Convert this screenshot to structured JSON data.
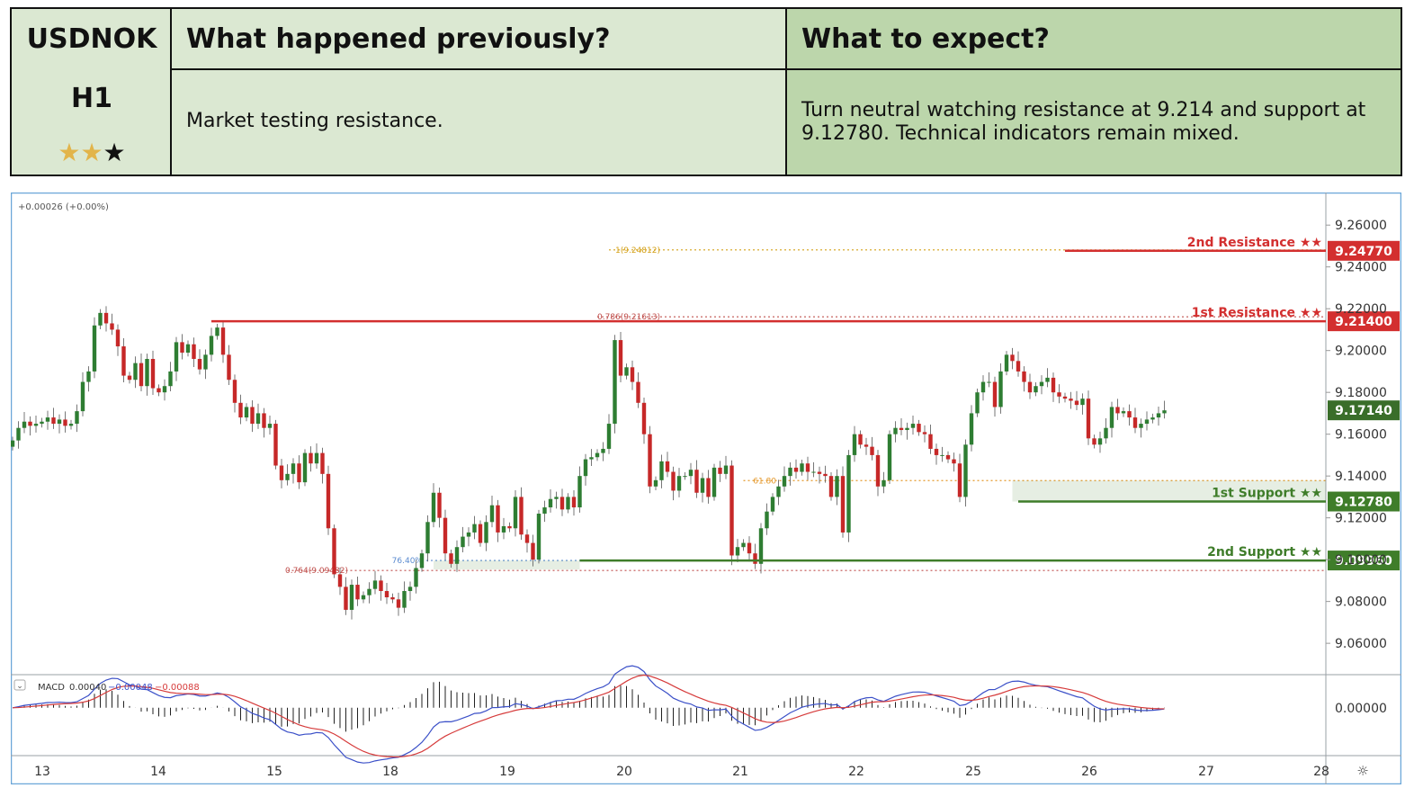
{
  "header": {
    "symbol": "USDNOK",
    "timeframe": "H1",
    "rating": {
      "filled": 2,
      "total": 3
    },
    "prev_title": "What happened previously?",
    "prev_text": "Market testing resistance.",
    "exp_title": "What to expect?",
    "exp_text": "Turn neutral watching resistance at 9.214 and support at 9.12780. Technical indicators remain mixed.",
    "colors": {
      "light_green": "#dbe8d2",
      "mid_green": "#bcd6ab"
    }
  },
  "chart_data": {
    "type": "candlestick",
    "change_label": "+0.00026 (+0.00%)",
    "y_ticks": [
      "9.26000",
      "9.24000",
      "9.22000",
      "9.20000",
      "9.18000",
      "9.16000",
      "9.14000",
      "9.12000",
      "9.10000",
      "9.08000",
      "9.06000"
    ],
    "ylim": [
      9.045,
      9.273
    ],
    "x_ticks": [
      "13",
      "14",
      "15",
      "18",
      "19",
      "20",
      "21",
      "22",
      "25",
      "26",
      "27",
      "28"
    ],
    "last_price": "9.17140",
    "levels": [
      {
        "name": "2nd Resistance ★★",
        "value": 9.2477,
        "label": "9.24770",
        "color": "#d32f2f",
        "start_bar": 180
      },
      {
        "name": "1st Resistance ★★",
        "value": 9.214,
        "label": "9.21400",
        "color": "#d32f2f",
        "start_bar": 34
      },
      {
        "name": "1st Support ★★",
        "value": 9.1278,
        "label": "9.12780",
        "color": "#3f7d2a",
        "start_bar": 172
      },
      {
        "name": "2nd Support ★★",
        "value": 9.0996,
        "label": "9.09960",
        "color": "#3f7d2a",
        "start_bar": 97
      }
    ],
    "fibs": [
      {
        "label": "1(9.24812)",
        "value": 9.24812,
        "color": "#d4a017"
      },
      {
        "label": "0.786(9.21613)",
        "value": 9.21613,
        "color": "#c0504d"
      },
      {
        "label": "61.80",
        "value": 9.1378,
        "color": "#e59a2e"
      },
      {
        "label": "76.40%",
        "value": 9.0996,
        "color": "#5b8bd0"
      },
      {
        "label": "0.764(9.09482)",
        "value": 9.09482,
        "color": "#c0504d"
      }
    ],
    "closes": [
      9.157,
      9.163,
      9.166,
      9.164,
      9.165,
      9.166,
      9.168,
      9.165,
      9.167,
      9.164,
      9.165,
      9.171,
      9.185,
      9.19,
      9.212,
      9.218,
      9.213,
      9.21,
      9.202,
      9.188,
      9.186,
      9.194,
      9.183,
      9.196,
      9.182,
      9.18,
      9.183,
      9.19,
      9.204,
      9.199,
      9.203,
      9.196,
      9.191,
      9.198,
      9.207,
      9.211,
      9.198,
      9.186,
      9.175,
      9.168,
      9.173,
      9.165,
      9.17,
      9.163,
      9.165,
      9.145,
      9.138,
      9.141,
      9.146,
      9.137,
      9.151,
      9.146,
      9.151,
      9.141,
      9.115,
      9.093,
      9.087,
      9.076,
      9.088,
      9.081,
      9.083,
      9.086,
      9.09,
      9.085,
      9.082,
      9.081,
      9.077,
      9.085,
      9.087,
      9.096,
      9.103,
      9.118,
      9.132,
      9.12,
      9.103,
      9.098,
      9.106,
      9.111,
      9.113,
      9.117,
      9.108,
      9.118,
      9.126,
      9.113,
      9.116,
      9.115,
      9.13,
      9.112,
      9.108,
      9.1,
      9.122,
      9.125,
      9.129,
      9.13,
      9.124,
      9.13,
      9.125,
      9.14,
      9.148,
      9.149,
      9.151,
      9.153,
      9.165,
      9.205,
      9.188,
      9.192,
      9.185,
      9.175,
      9.16,
      9.135,
      9.138,
      9.147,
      9.142,
      9.133,
      9.14,
      9.14,
      9.143,
      9.132,
      9.139,
      9.13,
      9.144,
      9.141,
      9.145,
      9.102,
      9.106,
      9.108,
      9.103,
      9.098,
      9.115,
      9.123,
      9.13,
      9.135,
      9.14,
      9.144,
      9.142,
      9.146,
      9.142,
      9.142,
      9.141,
      9.14,
      9.13,
      9.14,
      9.113,
      9.15,
      9.16,
      9.155,
      9.154,
      9.15,
      9.135,
      9.138,
      9.16,
      9.163,
      9.162,
      9.163,
      9.165,
      9.161,
      9.16,
      9.153,
      9.15,
      9.15,
      9.148,
      9.146,
      9.13,
      9.155,
      9.17,
      9.18,
      9.185,
      9.185,
      9.173,
      9.19,
      9.198,
      9.195,
      9.19,
      9.185,
      9.18,
      9.183,
      9.185,
      9.187,
      9.18,
      9.178,
      9.177,
      9.176,
      9.174,
      9.177,
      9.158,
      9.155,
      9.158,
      9.163,
      9.173,
      9.17,
      9.171,
      9.168,
      9.163,
      9.165,
      9.167,
      9.168,
      9.17,
      9.1714
    ],
    "macd": {
      "label": "MACD",
      "values": [
        "0.00040",
        "−0.00048",
        "−0.00088"
      ],
      "colors": [
        "#333333",
        "#3b50c8",
        "#d63b3b"
      ],
      "ylim": [
        -0.0006,
        0.0004
      ],
      "tick": "0.00000"
    }
  }
}
